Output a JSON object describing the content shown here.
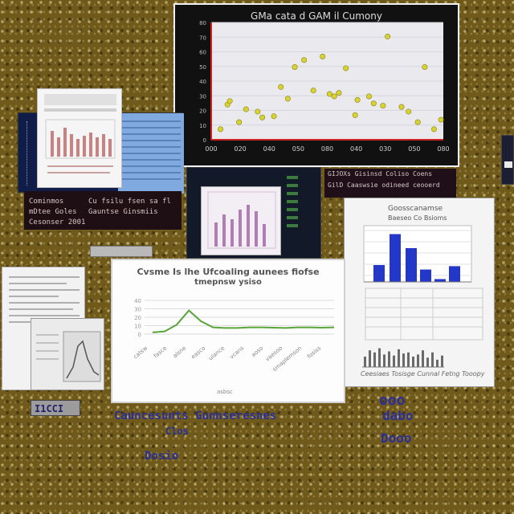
{
  "colors": {
    "background": "#6f5a1c",
    "scatter_frame": "#000000",
    "scatter_plot_bg": "#e9e9ee",
    "scatter_point": "#d8d231",
    "scatter_axis": "#cc2222",
    "line_color": "#5aa53a",
    "bar_color": "#2337c9",
    "blue_label": "#2a2f9a"
  },
  "scatter": {
    "title": "GMa cata d GAM il Cumony",
    "y_ticks": [
      "80",
      "70",
      "60",
      "50",
      "40",
      "30",
      "20",
      "10",
      "0"
    ],
    "x_ticks": [
      "000",
      "020",
      "040",
      "050",
      "080",
      "040",
      "030",
      "050",
      "080"
    ]
  },
  "dark_panel_left": {
    "rows": [
      [
        "Cominmos",
        "Cu fsilu fsen sa fl"
      ],
      [
        "mDtee Goles",
        "Gauntse Ginsmiis"
      ],
      [
        "Cesonser 2001",
        ""
      ]
    ]
  },
  "dark_panel_right": {
    "rows": [
      "GIJOXs Gisinsd Coliso Coens",
      "GilD Caaswsie odineed ceooerd",
      ""
    ]
  },
  "line_chart": {
    "title": "Cvsme Is lhe Ufcoaling aunees fiofse",
    "subtitle": "tmepnsw ysiso",
    "x_ticks": [
      "catsw",
      "fasce",
      "alsne",
      "easco",
      "ulance",
      "vcans",
      "aoso",
      "vaesoo",
      "smaplemson",
      "fosiss"
    ],
    "y_ticks": [
      "40",
      "30",
      "20",
      "10",
      "0"
    ],
    "footer": "asbsc"
  },
  "bar_panel": {
    "title": "Goosscanamse",
    "subtitle": "Baeseo Co Bsioms",
    "footer_text": "Ceesiaes Tosisge Cunnal Fetng Tooopy"
  },
  "bottom_labels": {
    "badge": "I1CCI",
    "left_line1": "Cauncesunts Gunnseresnes",
    "left_line2": "Clos",
    "left_line3": "Dosio",
    "right_line1": "ooo",
    "right_line2": "dabo",
    "right_line3": "Dooo"
  }
}
